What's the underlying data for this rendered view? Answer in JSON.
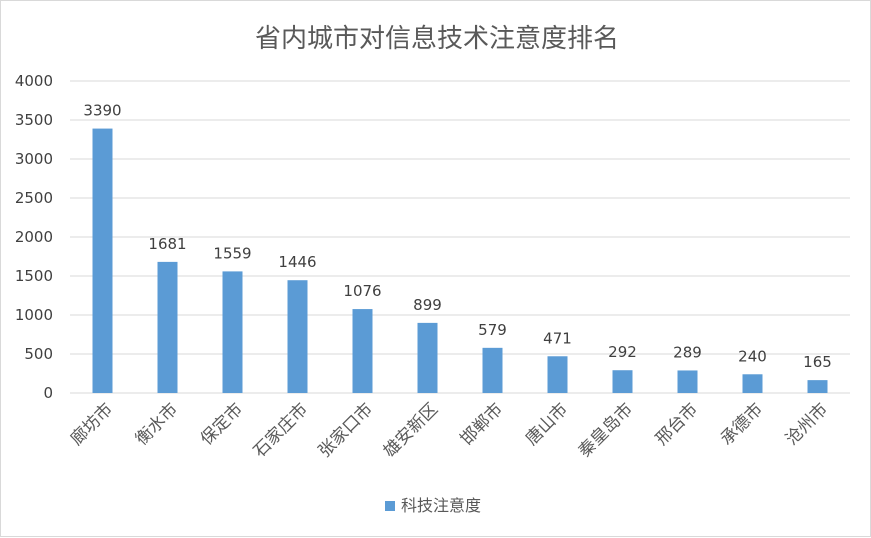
{
  "chart_data": {
    "type": "bar",
    "title": "省内城市对信息技术注意度排名",
    "categories": [
      "廊坊市",
      "衡水市",
      "保定市",
      "石家庄市",
      "张家口市",
      "雄安新区",
      "邯郸市",
      "唐山市",
      "秦皇岛市",
      "邢台市",
      "承德市",
      "沧州市"
    ],
    "series": [
      {
        "name": "科技注意度",
        "values": [
          3390,
          1681,
          1559,
          1446,
          1076,
          899,
          579,
          471,
          292,
          289,
          240,
          165
        ]
      }
    ],
    "ylim": [
      0,
      4000
    ],
    "yticks": [
      "0",
      "500",
      "1000",
      "1500",
      "2000",
      "2500",
      "3000",
      "3500",
      "4000"
    ],
    "grid": true,
    "legend_position": "bottom",
    "bar_color": "#5b9bd5",
    "grid_color": "#d9d9d9"
  }
}
